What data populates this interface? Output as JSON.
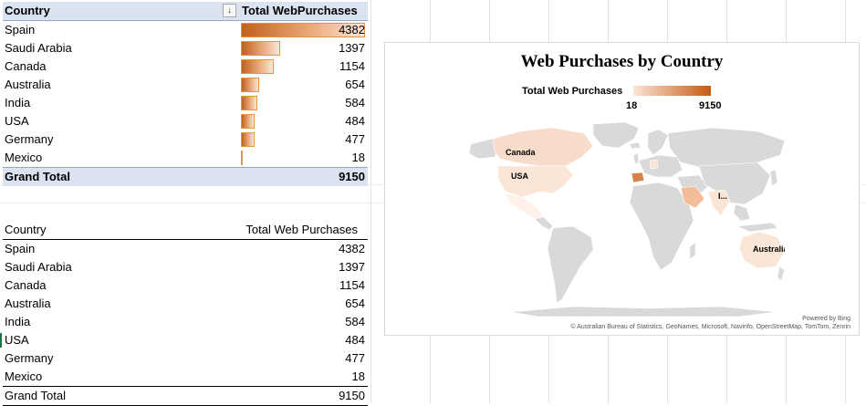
{
  "pivot_table": {
    "header": {
      "country": "Country",
      "measure": "Total WebPurchases",
      "filter_icon": "sort-filter-icon"
    },
    "rows": [
      {
        "country": "Spain",
        "value": "4382",
        "amount": 4382
      },
      {
        "country": "Saudi Arabia",
        "value": "1397",
        "amount": 1397
      },
      {
        "country": "Canada",
        "value": "1154",
        "amount": 1154
      },
      {
        "country": "Australia",
        "value": "654",
        "amount": 654
      },
      {
        "country": "India",
        "value": "584",
        "amount": 584
      },
      {
        "country": "USA",
        "value": "484",
        "amount": 484
      },
      {
        "country": "Germany",
        "value": "477",
        "amount": 477
      },
      {
        "country": "Mexico",
        "value": "18",
        "amount": 18
      }
    ],
    "grand_total": {
      "label": "Grand Total",
      "value": "9150"
    }
  },
  "plain_table": {
    "header": {
      "country": "Country",
      "measure": "Total Web Purchases"
    },
    "rows": [
      {
        "country": "Spain",
        "value": "4382"
      },
      {
        "country": "Saudi Arabia",
        "value": "1397"
      },
      {
        "country": "Canada",
        "value": "1154"
      },
      {
        "country": "Australia",
        "value": "654"
      },
      {
        "country": "India",
        "value": "584"
      },
      {
        "country": "USA",
        "value": "484"
      },
      {
        "country": "Germany",
        "value": "477"
      },
      {
        "country": "Mexico",
        "value": "18"
      }
    ],
    "grand_total": {
      "label": "Grand Total",
      "value": "9150"
    }
  },
  "map_chart": {
    "title": "Web Purchases by Country",
    "legend": {
      "title": "Total Web Purchases",
      "min": "18",
      "max": "9150",
      "color_low": "#fbe5d6",
      "color_high": "#c55a11"
    },
    "labels": {
      "canada": "Canada",
      "usa": "USA",
      "india": "I...",
      "australia": "Australia"
    },
    "powered_by": "Powered by Bing",
    "copyright": "© Australian Bureau of Statistics, GeoNames, Microsoft, Navinfo, OpenStreetMap, TomTom, Zenrin"
  },
  "chart_data": {
    "type": "map",
    "title": "Web Purchases by Country",
    "legend_title": "Total Web Purchases",
    "range": [
      18,
      9150
    ],
    "categories": [
      "Spain",
      "Saudi Arabia",
      "Canada",
      "Australia",
      "India",
      "USA",
      "Germany",
      "Mexico"
    ],
    "values": [
      4382,
      1397,
      1154,
      654,
      584,
      484,
      477,
      18
    ]
  }
}
